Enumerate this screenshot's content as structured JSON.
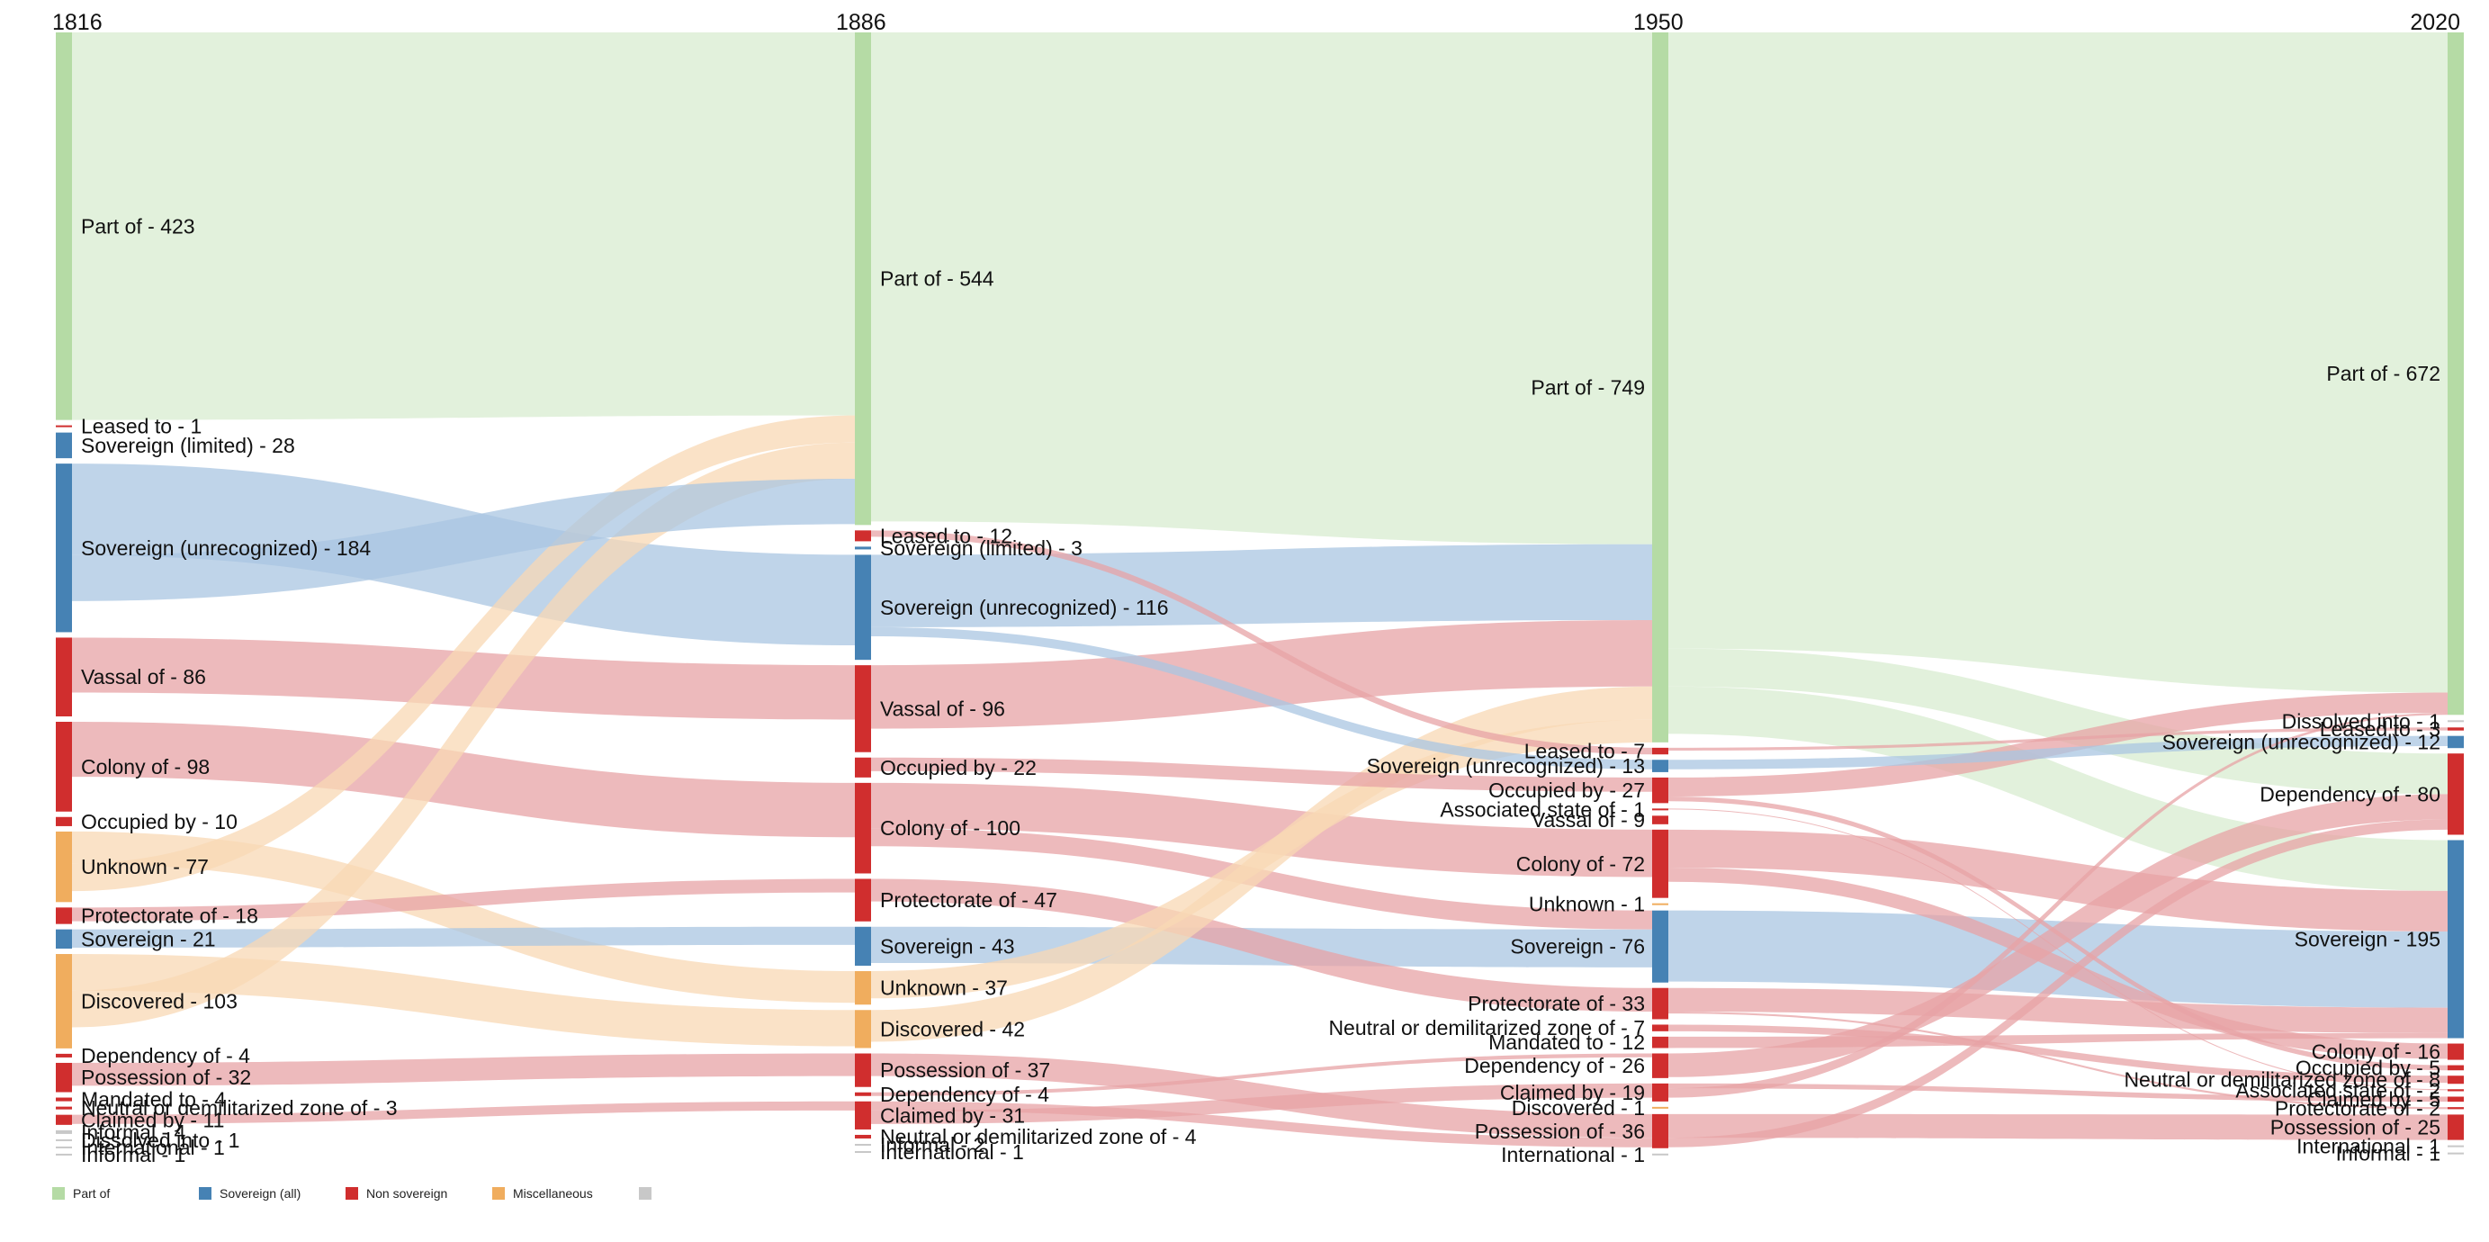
{
  "colors": {
    "part_of": "#b5dba5",
    "part_of_link": "#dff0d8",
    "sovereign": "#4682b4",
    "sovereign_link": "#a9c6e2",
    "non_sovereign": "#d02e2e",
    "non_sovereign_link": "#e7a3a5",
    "misc": "#f0ad5e",
    "misc_link": "#f8d8b4",
    "other": "#c8c8c8",
    "other_link": "#e2e2e2"
  },
  "years": [
    "1816",
    "1886",
    "1950",
    "2020"
  ],
  "legend": [
    {
      "label": "Part of",
      "color": "#b5dba5"
    },
    {
      "label": "Sovereign (all)",
      "color": "#4682b4"
    },
    {
      "label": "Non sovereign",
      "color": "#d02e2e"
    },
    {
      "label": "Miscellaneous",
      "color": "#f0ad5e"
    },
    {
      "label": "",
      "color": "#c8c8c8"
    }
  ],
  "chart_data": {
    "type": "sankey",
    "columns": [
      {
        "year": "1816",
        "nodes": [
          {
            "label": "Part of",
            "value": 423,
            "group": "part"
          },
          {
            "label": "Leased to",
            "value": 1,
            "group": "non"
          },
          {
            "label": "Sovereign (limited)",
            "value": 28,
            "group": "sov"
          },
          {
            "label": "Sovereign (unrecognized)",
            "value": 184,
            "group": "sov"
          },
          {
            "label": "Vassal of",
            "value": 86,
            "group": "non"
          },
          {
            "label": "Colony of",
            "value": 98,
            "group": "non"
          },
          {
            "label": "Occupied by",
            "value": 10,
            "group": "non"
          },
          {
            "label": "Unknown",
            "value": 77,
            "group": "misc"
          },
          {
            "label": "Protectorate of",
            "value": 18,
            "group": "non"
          },
          {
            "label": "Sovereign",
            "value": 21,
            "group": "sov"
          },
          {
            "label": "Discovered",
            "value": 103,
            "group": "misc"
          },
          {
            "label": "Dependency of",
            "value": 4,
            "group": "non"
          },
          {
            "label": "Possession of",
            "value": 32,
            "group": "non"
          },
          {
            "label": "Mandated to",
            "value": 4,
            "group": "non"
          },
          {
            "label": "Neutral or demilitarized zone of",
            "value": 3,
            "group": "non"
          },
          {
            "label": "Claimed by",
            "value": 11,
            "group": "non"
          },
          {
            "label": "Informal",
            "value": 4,
            "group": "other"
          },
          {
            "label": "Dissolved into",
            "value": 1,
            "group": "other"
          },
          {
            "label": "International",
            "value": 1,
            "group": "other"
          },
          {
            "label": "Informal",
            "value": 1,
            "group": "other"
          }
        ]
      },
      {
        "year": "1886",
        "nodes": [
          {
            "label": "Part of",
            "value": 544,
            "group": "part"
          },
          {
            "label": "Leased to",
            "value": 12,
            "group": "non"
          },
          {
            "label": "Sovereign (limited)",
            "value": 3,
            "group": "sov"
          },
          {
            "label": "Sovereign (unrecognized)",
            "value": 116,
            "group": "sov"
          },
          {
            "label": "Vassal of",
            "value": 96,
            "group": "non"
          },
          {
            "label": "Occupied by",
            "value": 22,
            "group": "non"
          },
          {
            "label": "Colony of",
            "value": 100,
            "group": "non"
          },
          {
            "label": "Protectorate of",
            "value": 47,
            "group": "non"
          },
          {
            "label": "Sovereign",
            "value": 43,
            "group": "sov"
          },
          {
            "label": "Unknown",
            "value": 37,
            "group": "misc"
          },
          {
            "label": "Discovered",
            "value": 42,
            "group": "misc"
          },
          {
            "label": "Possession of",
            "value": 37,
            "group": "non"
          },
          {
            "label": "Dependency of",
            "value": 4,
            "group": "non"
          },
          {
            "label": "Claimed by",
            "value": 31,
            "group": "non"
          },
          {
            "label": "Neutral or demilitarized zone of",
            "value": 4,
            "group": "non"
          },
          {
            "label": "Informal",
            "value": 2,
            "group": "other"
          },
          {
            "label": "International",
            "value": 1,
            "group": "other"
          }
        ]
      },
      {
        "year": "1950",
        "nodes": [
          {
            "label": "Part of",
            "value": 749,
            "group": "part"
          },
          {
            "label": "Leased to",
            "value": 7,
            "group": "non"
          },
          {
            "label": "Sovereign (unrecognized)",
            "value": 13,
            "group": "sov"
          },
          {
            "label": "Occupied by",
            "value": 27,
            "group": "non"
          },
          {
            "label": "Associated state of",
            "value": 1,
            "group": "non"
          },
          {
            "label": "Vassal of",
            "value": 9,
            "group": "non"
          },
          {
            "label": "Colony of",
            "value": 72,
            "group": "non"
          },
          {
            "label": "Unknown",
            "value": 1,
            "group": "misc"
          },
          {
            "label": "Sovereign",
            "value": 76,
            "group": "sov"
          },
          {
            "label": "Protectorate of",
            "value": 33,
            "group": "non"
          },
          {
            "label": "Neutral or demilitarized zone of",
            "value": 7,
            "group": "non"
          },
          {
            "label": "Mandated to",
            "value": 12,
            "group": "non"
          },
          {
            "label": "Dependency of",
            "value": 26,
            "group": "non"
          },
          {
            "label": "Claimed by",
            "value": 19,
            "group": "non"
          },
          {
            "label": "Discovered",
            "value": 1,
            "group": "misc"
          },
          {
            "label": "Possession of",
            "value": 36,
            "group": "non"
          },
          {
            "label": "International",
            "value": 1,
            "group": "other"
          }
        ]
      },
      {
        "year": "2020",
        "nodes": [
          {
            "label": "Part of",
            "value": 672,
            "group": "part"
          },
          {
            "label": "Dissolved into",
            "value": 1,
            "group": "other"
          },
          {
            "label": "Leased to",
            "value": 3,
            "group": "non"
          },
          {
            "label": "Sovereign (unrecognized)",
            "value": 12,
            "group": "sov"
          },
          {
            "label": "Dependency of",
            "value": 80,
            "group": "non"
          },
          {
            "label": "Sovereign",
            "value": 195,
            "group": "sov"
          },
          {
            "label": "Colony of",
            "value": 16,
            "group": "non"
          },
          {
            "label": "Occupied by",
            "value": 5,
            "group": "non"
          },
          {
            "label": "Neutral or demilitarized zone of",
            "value": 8,
            "group": "non"
          },
          {
            "label": "Associated state of",
            "value": 2,
            "group": "non"
          },
          {
            "label": "Claimed by",
            "value": 5,
            "group": "non"
          },
          {
            "label": "Protectorate of",
            "value": 2,
            "group": "non"
          },
          {
            "label": "Possession of",
            "value": 25,
            "group": "non"
          },
          {
            "label": "International",
            "value": 1,
            "group": "other"
          },
          {
            "label": "Informal",
            "value": 1,
            "group": "other"
          }
        ]
      }
    ],
    "main_flows": [
      {
        "from": [
          0,
          "Part of"
        ],
        "to": [
          1,
          "Part of"
        ],
        "value": 423
      },
      {
        "from": [
          0,
          "Sovereign (unrecognized)"
        ],
        "to": [
          1,
          "Sovereign (unrecognized)"
        ],
        "value": 100
      },
      {
        "from": [
          0,
          "Vassal of"
        ],
        "to": [
          1,
          "Vassal of"
        ],
        "value": 60
      },
      {
        "from": [
          0,
          "Colony of"
        ],
        "to": [
          1,
          "Colony of"
        ],
        "value": 60
      },
      {
        "from": [
          0,
          "Discovered"
        ],
        "to": [
          1,
          "Discovered"
        ],
        "value": 40
      },
      {
        "from": [
          0,
          "Unknown"
        ],
        "to": [
          1,
          "Unknown"
        ],
        "value": 35
      },
      {
        "from": [
          0,
          "Possession of"
        ],
        "to": [
          1,
          "Possession of"
        ],
        "value": 25
      },
      {
        "from": [
          0,
          "Sovereign"
        ],
        "to": [
          1,
          "Sovereign"
        ],
        "value": 20
      },
      {
        "from": [
          0,
          "Claimed by"
        ],
        "to": [
          1,
          "Claimed by"
        ],
        "value": 10
      },
      {
        "from": [
          0,
          "Protectorate of"
        ],
        "to": [
          1,
          "Protectorate of"
        ],
        "value": 15
      },
      {
        "from": [
          0,
          "Unknown"
        ],
        "to": [
          1,
          "Part of"
        ],
        "value": 30
      },
      {
        "from": [
          0,
          "Discovered"
        ],
        "to": [
          1,
          "Part of"
        ],
        "value": 40
      },
      {
        "from": [
          0,
          "Sovereign (unrecognized)"
        ],
        "to": [
          1,
          "Part of"
        ],
        "value": 50
      },
      {
        "from": [
          0,
          "Part of"
        ],
        "to": [
          1,
          "Protectorate of"
        ],
        "value": 0
      },
      {
        "from": [
          1,
          "Part of"
        ],
        "to": [
          2,
          "Part of"
        ],
        "value": 540
      },
      {
        "from": [
          1,
          "Sovereign (unrecognized)"
        ],
        "to": [
          2,
          "Part of"
        ],
        "value": 80
      },
      {
        "from": [
          1,
          "Vassal of"
        ],
        "to": [
          2,
          "Part of"
        ],
        "value": 70
      },
      {
        "from": [
          1,
          "Colony of"
        ],
        "to": [
          2,
          "Colony of"
        ],
        "value": 50
      },
      {
        "from": [
          1,
          "Colony of"
        ],
        "to": [
          2,
          "Sovereign"
        ],
        "value": 20
      },
      {
        "from": [
          1,
          "Sovereign"
        ],
        "to": [
          2,
          "Sovereign"
        ],
        "value": 40
      },
      {
        "from": [
          1,
          "Possession of"
        ],
        "to": [
          2,
          "Possession of"
        ],
        "value": 25
      },
      {
        "from": [
          1,
          "Claimed by"
        ],
        "to": [
          2,
          "Possession of"
        ],
        "value": 10
      },
      {
        "from": [
          1,
          "Protectorate of"
        ],
        "to": [
          2,
          "Protectorate of"
        ],
        "value": 25
      },
      {
        "from": [
          1,
          "Discovered"
        ],
        "to": [
          2,
          "Part of"
        ],
        "value": 35
      },
      {
        "from": [
          1,
          "Unknown"
        ],
        "to": [
          2,
          "Part of"
        ],
        "value": 30
      },
      {
        "from": [
          1,
          "Occupied by"
        ],
        "to": [
          2,
          "Occupied by"
        ],
        "value": 15
      },
      {
        "from": [
          1,
          "Sovereign (unrecognized)"
        ],
        "to": [
          2,
          "Sovereign (unrecognized)"
        ],
        "value": 10
      },
      {
        "from": [
          1,
          "Dependency of"
        ],
        "to": [
          2,
          "Dependency of"
        ],
        "value": 4
      },
      {
        "from": [
          1,
          "Claimed by"
        ],
        "to": [
          2,
          "Claimed by"
        ],
        "value": 15
      },
      {
        "from": [
          1,
          "Leased to"
        ],
        "to": [
          2,
          "Leased to"
        ],
        "value": 7
      },
      {
        "from": [
          2,
          "Part of"
        ],
        "to": [
          3,
          "Part of"
        ],
        "value": 650
      },
      {
        "from": [
          2,
          "Part of"
        ],
        "to": [
          3,
          "Dependency of"
        ],
        "value": 40
      },
      {
        "from": [
          2,
          "Part of"
        ],
        "to": [
          3,
          "Sovereign"
        ],
        "value": 50
      },
      {
        "from": [
          2,
          "Colony of"
        ],
        "to": [
          3,
          "Sovereign"
        ],
        "value": 40
      },
      {
        "from": [
          2,
          "Sovereign"
        ],
        "to": [
          3,
          "Sovereign"
        ],
        "value": 75
      },
      {
        "from": [
          2,
          "Dependency of"
        ],
        "to": [
          3,
          "Dependency of"
        ],
        "value": 25
      },
      {
        "from": [
          2,
          "Possession of"
        ],
        "to": [
          3,
          "Possession of"
        ],
        "value": 25
      },
      {
        "from": [
          2,
          "Possession of"
        ],
        "to": [
          3,
          "Dependency of"
        ],
        "value": 10
      },
      {
        "from": [
          2,
          "Protectorate of"
        ],
        "to": [
          3,
          "Sovereign"
        ],
        "value": 25
      },
      {
        "from": [
          2,
          "Colony of"
        ],
        "to": [
          3,
          "Colony of"
        ],
        "value": 15
      },
      {
        "from": [
          2,
          "Occupied by"
        ],
        "to": [
          3,
          "Part of"
        ],
        "value": 20
      },
      {
        "from": [
          2,
          "Sovereign (unrecognized)"
        ],
        "to": [
          3,
          "Sovereign (unrecognized)"
        ],
        "value": 10
      },
      {
        "from": [
          2,
          "Claimed by"
        ],
        "to": [
          3,
          "Claimed by"
        ],
        "value": 5
      },
      {
        "from": [
          2,
          "Neutral or demilitarized zone of"
        ],
        "to": [
          3,
          "Neutral or demilitarized zone of"
        ],
        "value": 7
      },
      {
        "from": [
          2,
          "Leased to"
        ],
        "to": [
          3,
          "Leased to"
        ],
        "value": 3
      },
      {
        "from": [
          2,
          "Mandated to"
        ],
        "to": [
          3,
          "Sovereign"
        ],
        "value": 12
      },
      {
        "from": [
          2,
          "Claimed by"
        ],
        "to": [
          3,
          "Part of"
        ],
        "value": 10
      },
      {
        "from": [
          2,
          "Occupied by"
        ],
        "to": [
          3,
          "Occupied by"
        ],
        "value": 5
      },
      {
        "from": [
          2,
          "Associated state of"
        ],
        "to": [
          3,
          "Associated state of"
        ],
        "value": 1
      },
      {
        "from": [
          2,
          "Protectorate of"
        ],
        "to": [
          3,
          "Protectorate of"
        ],
        "value": 2
      }
    ]
  }
}
